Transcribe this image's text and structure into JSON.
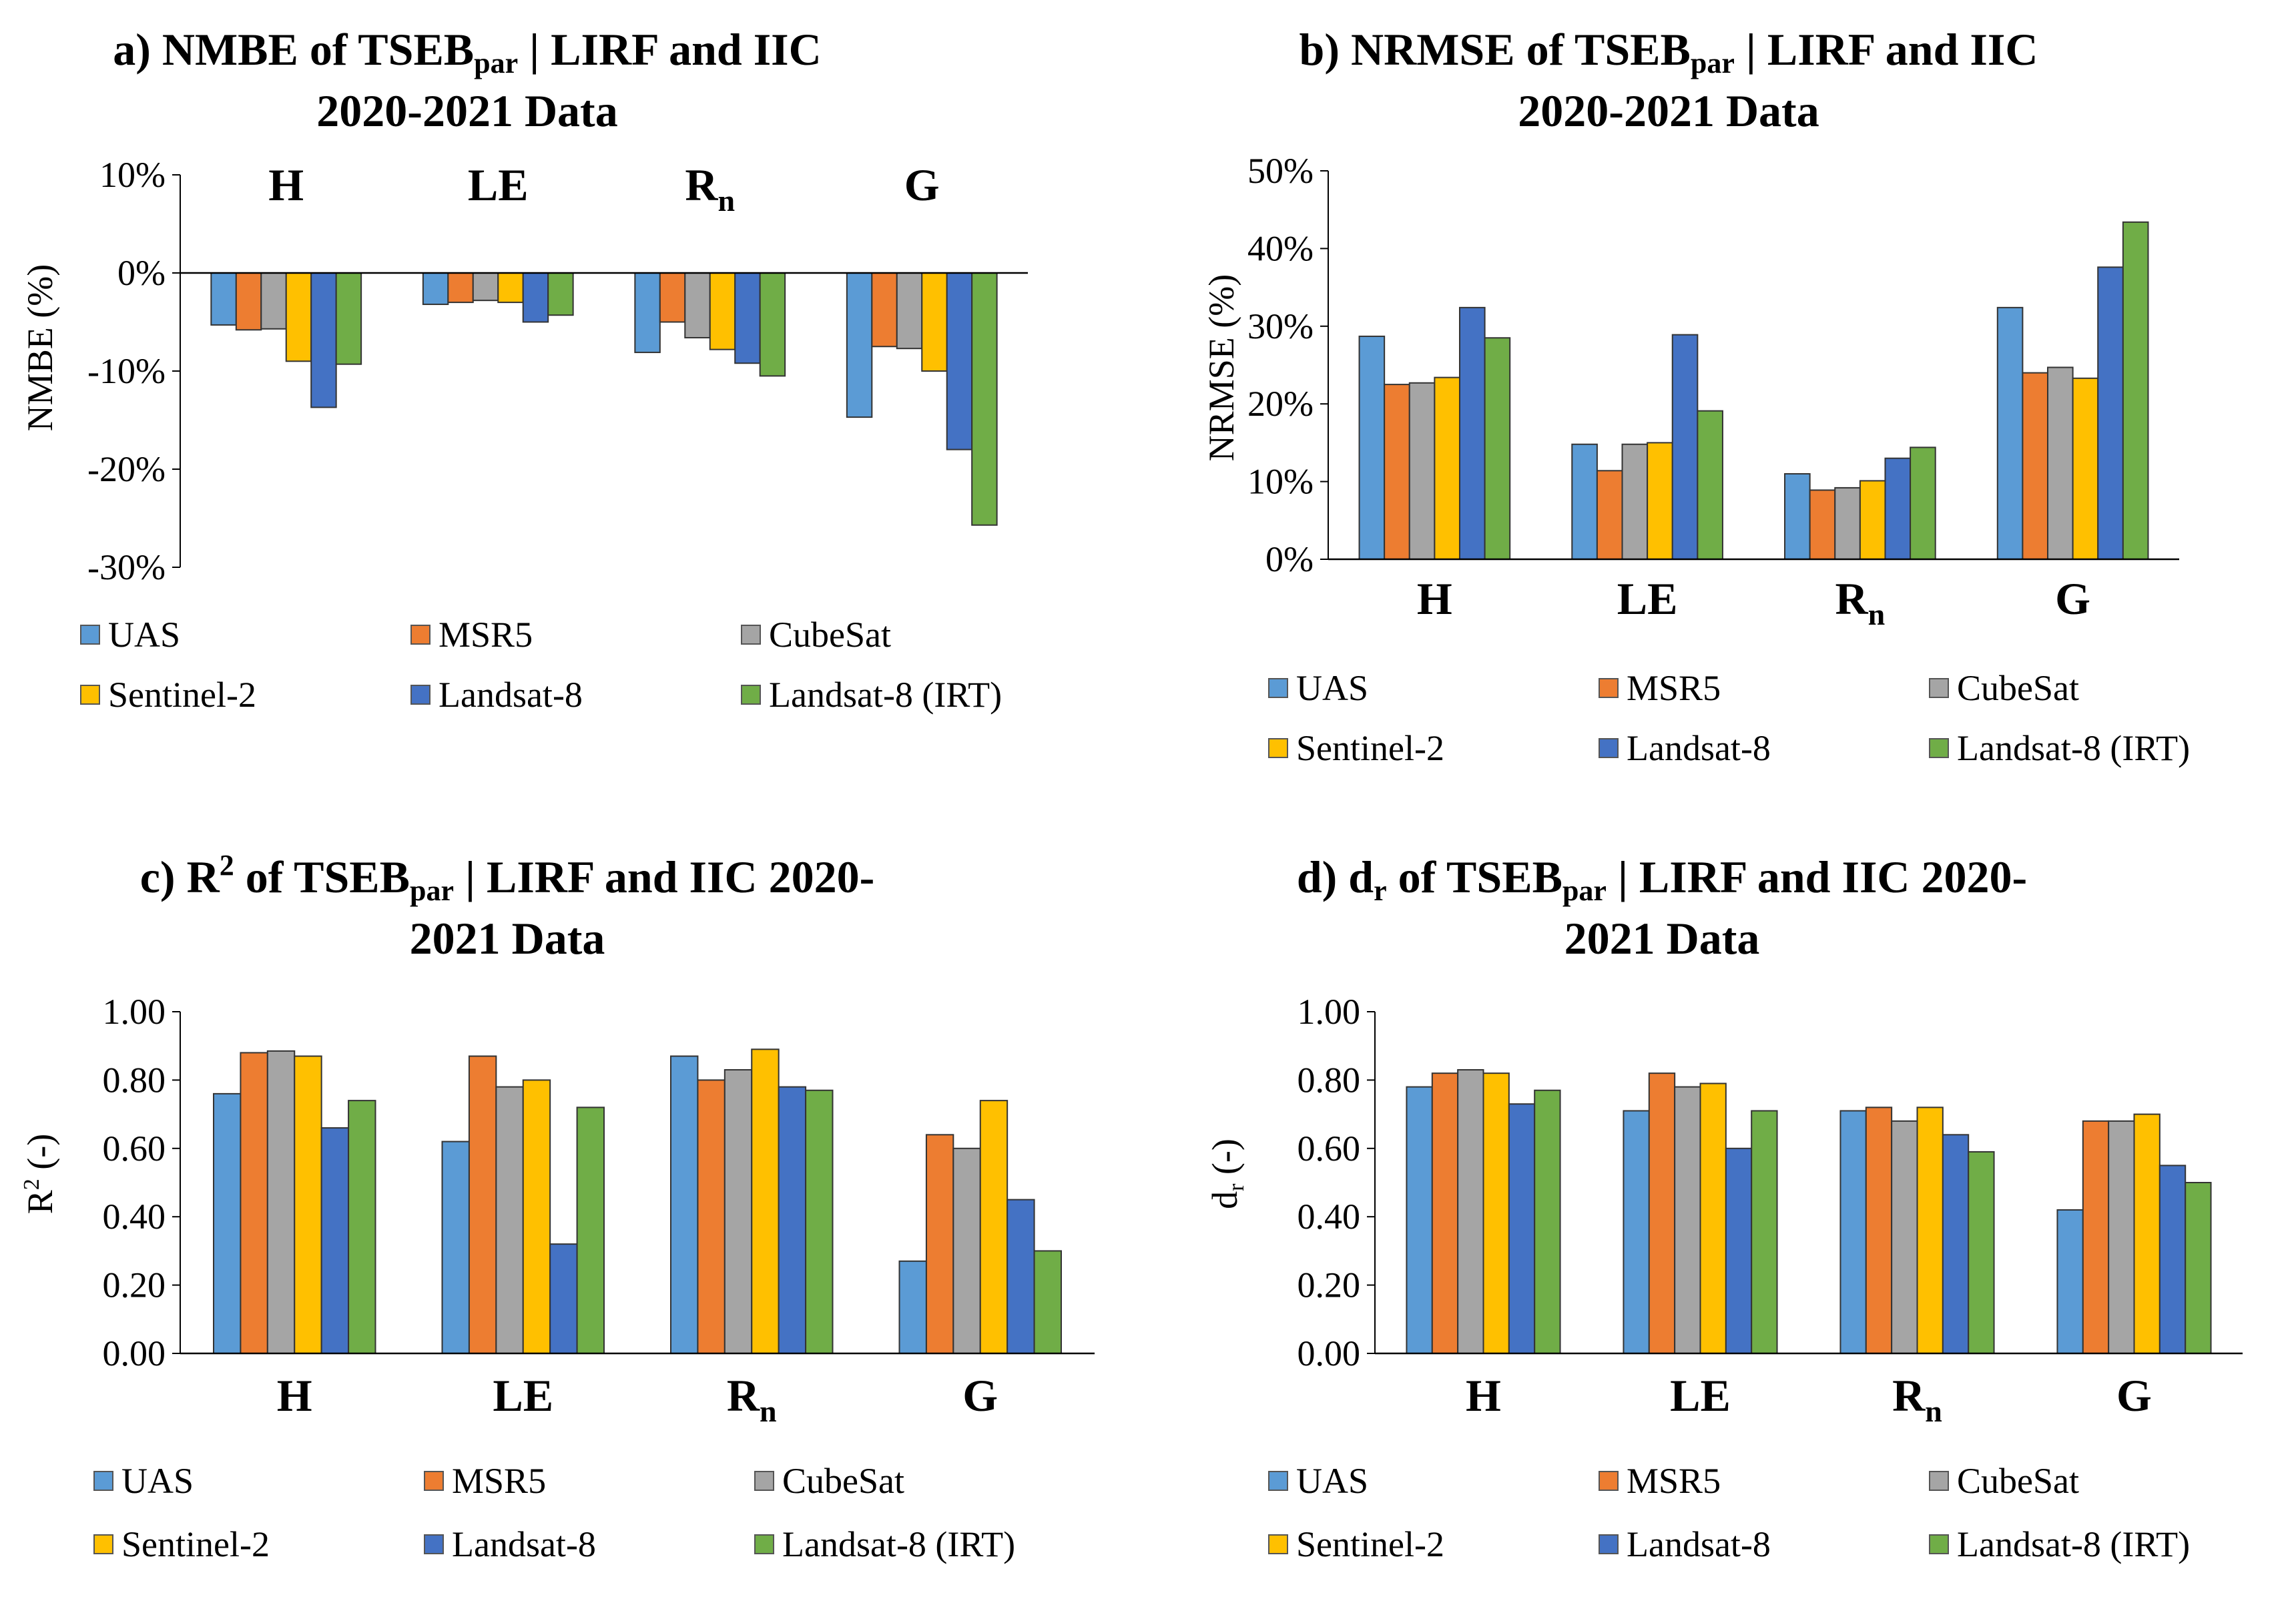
{
  "series_names": [
    "UAS",
    "MSR5",
    "CubeSat",
    "Sentinel-2",
    "Landsat-8",
    "Landsat-8 (IRT)"
  ],
  "series_colors": [
    "#5B9BD5",
    "#ED7D31",
    "#A5A5A5",
    "#FFC000",
    "#4472C4",
    "#70AD47"
  ],
  "panels": {
    "a": {
      "title_pre": "a) NMBE of TSEB",
      "title_sub": "par",
      "title_post": " | LIRF and IIC 2020-2021 Data",
      "ylabel": "NMBE (%)"
    },
    "b": {
      "title_pre": "b) NRMSE of TSEB",
      "title_sub": "par",
      "title_post": " | LIRF and IIC 2020-2021 Data",
      "ylabel": "NRMSE (%)"
    },
    "c": {
      "title_pre": "c) R",
      "title_sup": "2",
      "title_mid": " of TSEB",
      "title_sub": "par",
      "title_post": " | LIRF and IIC 2020-2021 Data",
      "ylabel_base": "R",
      "ylabel_sup": "2",
      "ylabel_rest": " (-)"
    },
    "d": {
      "title_pre": "d) d",
      "title_sub1": "r",
      "title_mid": " of TSEB",
      "title_sub": "par",
      "title_post": " | LIRF and IIC 2020-2021 Data",
      "ylabel_base": "d",
      "ylabel_sub": "r",
      "ylabel_rest": " (-)"
    }
  },
  "chart_data": [
    {
      "id": "a",
      "type": "bar",
      "title": "a) NMBE of TSEBpar | LIRF and IIC 2020-2021 Data",
      "ylabel": "NMBE (%)",
      "categories": [
        "H",
        "LE",
        "Rn",
        "G"
      ],
      "ylim": [
        -30,
        10
      ],
      "yticks": [
        10,
        0,
        -10,
        -20,
        -30
      ],
      "ytick_labels": [
        "10%",
        "0%",
        "-10%",
        "-20%",
        "-30%"
      ],
      "category_position": "top",
      "series": [
        {
          "name": "UAS",
          "values": [
            -5.3,
            -3.2,
            -8.1,
            -14.7
          ]
        },
        {
          "name": "MSR5",
          "values": [
            -5.8,
            -3.0,
            -5.0,
            -7.5
          ]
        },
        {
          "name": "CubeSat",
          "values": [
            -5.7,
            -2.8,
            -6.6,
            -7.7
          ]
        },
        {
          "name": "Sentinel-2",
          "values": [
            -9.0,
            -3.0,
            -7.8,
            -10.0
          ]
        },
        {
          "name": "Landsat-8",
          "values": [
            -13.7,
            -5.0,
            -9.2,
            -18.0
          ]
        },
        {
          "name": "Landsat-8 (IRT)",
          "values": [
            -9.3,
            -4.3,
            -10.5,
            -25.7
          ]
        }
      ]
    },
    {
      "id": "b",
      "type": "bar",
      "title": "b) NRMSE of TSEBpar | LIRF and IIC 2020-2021 Data",
      "ylabel": "NRMSE (%)",
      "categories": [
        "H",
        "LE",
        "Rn",
        "G"
      ],
      "ylim": [
        0,
        50
      ],
      "yticks": [
        50,
        40,
        30,
        20,
        10,
        0
      ],
      "ytick_labels": [
        "50%",
        "40%",
        "30%",
        "20%",
        "10%",
        "0%"
      ],
      "category_position": "bottom",
      "series": [
        {
          "name": "UAS",
          "values": [
            28.7,
            14.8,
            11.0,
            32.4
          ]
        },
        {
          "name": "MSR5",
          "values": [
            22.5,
            11.4,
            8.9,
            24.0
          ]
        },
        {
          "name": "CubeSat",
          "values": [
            22.7,
            14.8,
            9.2,
            24.7
          ]
        },
        {
          "name": "Sentinel-2",
          "values": [
            23.4,
            15.0,
            10.1,
            23.3
          ]
        },
        {
          "name": "Landsat-8",
          "values": [
            32.4,
            28.9,
            13.0,
            37.6
          ]
        },
        {
          "name": "Landsat-8 (IRT)",
          "values": [
            28.5,
            19.1,
            14.4,
            43.4
          ]
        }
      ]
    },
    {
      "id": "c",
      "type": "bar",
      "title": "c) R2 of TSEBpar | LIRF and IIC 2020-2021 Data",
      "ylabel": "R2 (-)",
      "categories": [
        "H",
        "LE",
        "Rn",
        "G"
      ],
      "ylim": [
        0,
        1
      ],
      "yticks": [
        1,
        0.8,
        0.6,
        0.4,
        0.2,
        0
      ],
      "ytick_labels": [
        "1.00",
        "0.80",
        "0.60",
        "0.40",
        "0.20",
        "0.00"
      ],
      "category_position": "bottom",
      "series": [
        {
          "name": "UAS",
          "values": [
            0.76,
            0.62,
            0.87,
            0.27
          ]
        },
        {
          "name": "MSR5",
          "values": [
            0.88,
            0.87,
            0.8,
            0.64
          ]
        },
        {
          "name": "CubeSat",
          "values": [
            0.885,
            0.78,
            0.83,
            0.6
          ]
        },
        {
          "name": "Sentinel-2",
          "values": [
            0.87,
            0.8,
            0.89,
            0.74
          ]
        },
        {
          "name": "Landsat-8",
          "values": [
            0.66,
            0.32,
            0.78,
            0.45
          ]
        },
        {
          "name": "Landsat-8 (IRT)",
          "values": [
            0.74,
            0.72,
            0.77,
            0.3
          ]
        }
      ]
    },
    {
      "id": "d",
      "type": "bar",
      "title": "d) dr of TSEBpar | LIRF and IIC 2020-2021 Data",
      "ylabel": "dr (-)",
      "categories": [
        "H",
        "LE",
        "Rn",
        "G"
      ],
      "ylim": [
        0,
        1
      ],
      "yticks": [
        1,
        0.8,
        0.6,
        0.4,
        0.2,
        0
      ],
      "ytick_labels": [
        "1.00",
        "0.80",
        "0.60",
        "0.40",
        "0.20",
        "0.00"
      ],
      "category_position": "bottom",
      "series": [
        {
          "name": "UAS",
          "values": [
            0.78,
            0.71,
            0.71,
            0.42
          ]
        },
        {
          "name": "MSR5",
          "values": [
            0.82,
            0.82,
            0.72,
            0.68
          ]
        },
        {
          "name": "CubeSat",
          "values": [
            0.83,
            0.78,
            0.68,
            0.68
          ]
        },
        {
          "name": "Sentinel-2",
          "values": [
            0.82,
            0.79,
            0.72,
            0.7
          ]
        },
        {
          "name": "Landsat-8",
          "values": [
            0.73,
            0.6,
            0.64,
            0.55
          ]
        },
        {
          "name": "Landsat-8 (IRT)",
          "values": [
            0.77,
            0.71,
            0.59,
            0.5
          ]
        }
      ]
    }
  ]
}
